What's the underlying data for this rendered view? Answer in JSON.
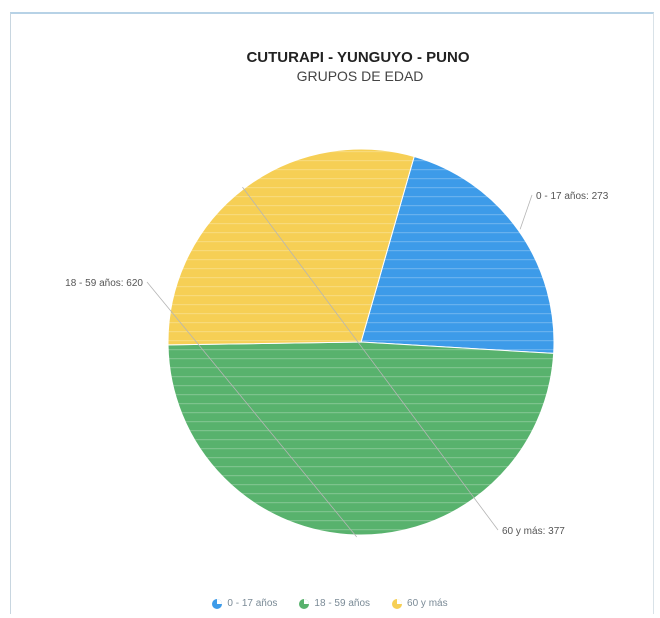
{
  "chart_data": {
    "type": "pie",
    "title": "CUTURAPI - YUNGUYO - PUNO",
    "subtitle": "GRUPOS DE EDAD",
    "slices": [
      {
        "label": "0 - 17 años",
        "value": 273,
        "display": "0 - 17 años: 273",
        "color": "#3d9be9"
      },
      {
        "label": "18 - 59 años",
        "value": 620,
        "display": "18 - 59 años: 620",
        "color": "#58b26d"
      },
      {
        "label": "60 y más",
        "value": 377,
        "display": "60 y más: 377",
        "color": "#f6cf55"
      }
    ],
    "legend_position": "bottom",
    "start_angle_deg": 16
  }
}
